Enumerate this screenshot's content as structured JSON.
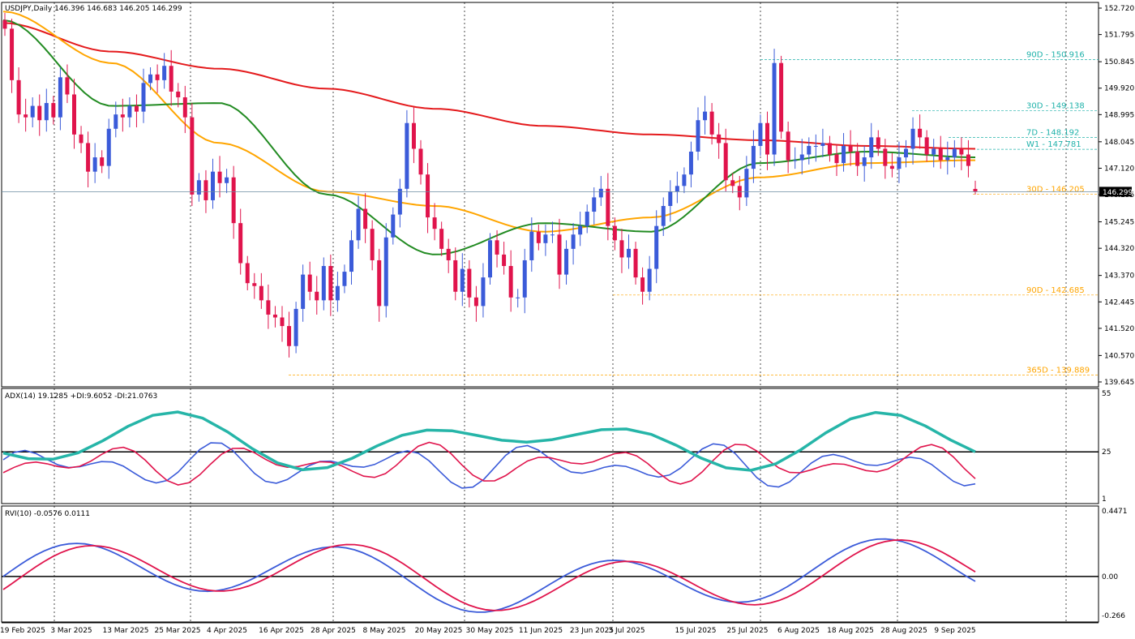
{
  "symbol_header": "USDJPY,Daily  146.396 146.683 146.205 146.299",
  "price_label": "146.299",
  "colors": {
    "bull": "#3b5bd9",
    "bear": "#e0144c",
    "ma_red": "#e41a1c",
    "ma_orange": "#ffa500",
    "ma_green": "#228b22",
    "adx": "#26b5a8",
    "teal_text": "#20b2aa",
    "orange_text": "#ffa500"
  },
  "price_axis_ticks": [
    "152.720",
    "151.795",
    "150.845",
    "149.920",
    "148.995",
    "148.045",
    "147.120",
    "146.195",
    "145.245",
    "144.320",
    "143.370",
    "142.445",
    "141.520",
    "140.570",
    "139.645"
  ],
  "date_labels": [
    "19 Feb 2025",
    "3 Mar 2025",
    "13 Mar 2025",
    "25 Mar 2025",
    "4 Apr 2025",
    "16 Apr 2025",
    "28 Apr 2025",
    "8 May 2025",
    "20 May 2025",
    "30 May 2025",
    "11 Jun 2025",
    "23 Jun 2025",
    "3 Jul 2025",
    "15 Jul 2025",
    "25 Jul 2025",
    "6 Aug 2025",
    "18 Aug 2025",
    "28 Aug 2025",
    "9 Sep 2025"
  ],
  "levels": [
    {
      "label": "90D - 150.916",
      "price": 150.916,
      "style": "teal"
    },
    {
      "label": "30D - 149.138",
      "price": 149.138,
      "style": "teal"
    },
    {
      "label": "7D - 148.192",
      "price": 148.192,
      "style": "teal"
    },
    {
      "label": "W1 - 147.781",
      "price": 147.781,
      "style": "teal"
    },
    {
      "label": "30D - 146.205",
      "price": 146.205,
      "style": "orange"
    },
    {
      "label": "90D - 142.685",
      "price": 142.685,
      "style": "orange"
    },
    {
      "label": "365D - 139.889",
      "price": 139.889,
      "style": "orange"
    }
  ],
  "adx_header": "ADX(14) 19.1285 +DI:9.6052 -DI:21.0763",
  "adx_axis": [
    "55",
    "25",
    "1"
  ],
  "rvi_header": "RVI(10) -0.0576 0.0111",
  "rvi_axis": [
    "0.4471",
    "0.00",
    "-0.266"
  ],
  "chart_data": {
    "type": "line",
    "title": "USDJPY,Daily",
    "ohlc_last": {
      "open": 146.396,
      "high": 146.683,
      "low": 146.205,
      "close": 146.299
    },
    "ylim": [
      139.645,
      152.72
    ],
    "series": [
      {
        "name": "USDJPY close",
        "values": [
          152.0,
          150.2,
          149.0,
          148.9,
          149.3,
          148.8,
          149.4,
          148.9,
          150.3,
          149.7,
          148.3,
          148.0,
          147.0,
          147.5,
          147.2,
          148.5,
          149.0,
          148.9,
          149.3,
          149.1,
          150.1,
          150.4,
          150.2,
          150.7,
          149.8,
          149.6,
          148.9,
          146.2,
          146.7,
          146.0,
          147.0,
          146.6,
          146.8,
          145.2,
          143.8,
          143.1,
          143.0,
          142.5,
          142.0,
          141.9,
          141.6,
          140.9,
          142.2,
          143.4,
          142.8,
          142.5,
          143.7,
          142.5,
          143.0,
          143.5,
          144.6,
          145.7,
          145.0,
          143.9,
          142.3,
          144.7,
          145.5,
          146.4,
          148.7,
          147.8,
          146.9,
          145.4,
          145.0,
          144.3,
          143.9,
          142.8,
          143.6,
          142.6,
          142.3,
          143.3,
          144.6,
          144.1,
          143.7,
          142.6,
          142.6,
          143.9,
          144.9,
          144.5,
          144.8,
          144.8,
          143.4,
          144.3,
          144.8,
          145.1,
          145.6,
          146.1,
          146.4,
          145.1,
          144.6,
          144.0,
          144.3,
          143.3,
          142.8,
          143.6,
          145.1,
          145.8,
          146.3,
          146.5,
          146.9,
          147.7,
          148.8,
          149.1,
          148.3,
          148.0,
          146.7,
          146.5,
          146.1,
          147.1,
          147.9,
          148.7,
          147.6,
          150.8,
          148.4,
          147.4,
          147.4,
          147.6,
          147.9,
          147.9,
          148.0,
          147.6,
          147.3,
          147.9,
          147.7,
          147.2,
          147.5,
          148.2,
          147.8,
          147.2,
          147.1,
          147.5,
          147.8,
          148.5,
          148.2,
          147.6,
          147.8,
          147.4,
          147.5,
          147.8,
          147.6,
          147.2,
          146.3
        ]
      },
      {
        "name": "MA red",
        "values": [
          152.2,
          151.2,
          150.6,
          149.9,
          149.2,
          148.6,
          148.3,
          148.1,
          147.9,
          147.8
        ]
      },
      {
        "name": "MA orange",
        "values": [
          152.6,
          150.8,
          148.0,
          146.3,
          145.8,
          144.9,
          145.4,
          146.8,
          147.3,
          147.4
        ]
      },
      {
        "name": "MA green",
        "values": [
          152.3,
          149.3,
          149.4,
          146.2,
          144.1,
          145.2,
          144.9,
          147.3,
          147.7,
          147.5
        ]
      }
    ],
    "adx_series": {
      "ylim": [
        1,
        55
      ],
      "levels": [
        25
      ]
    },
    "rvi_series": {
      "ylim": [
        -0.266,
        0.4471
      ],
      "levels": [
        0
      ]
    }
  }
}
